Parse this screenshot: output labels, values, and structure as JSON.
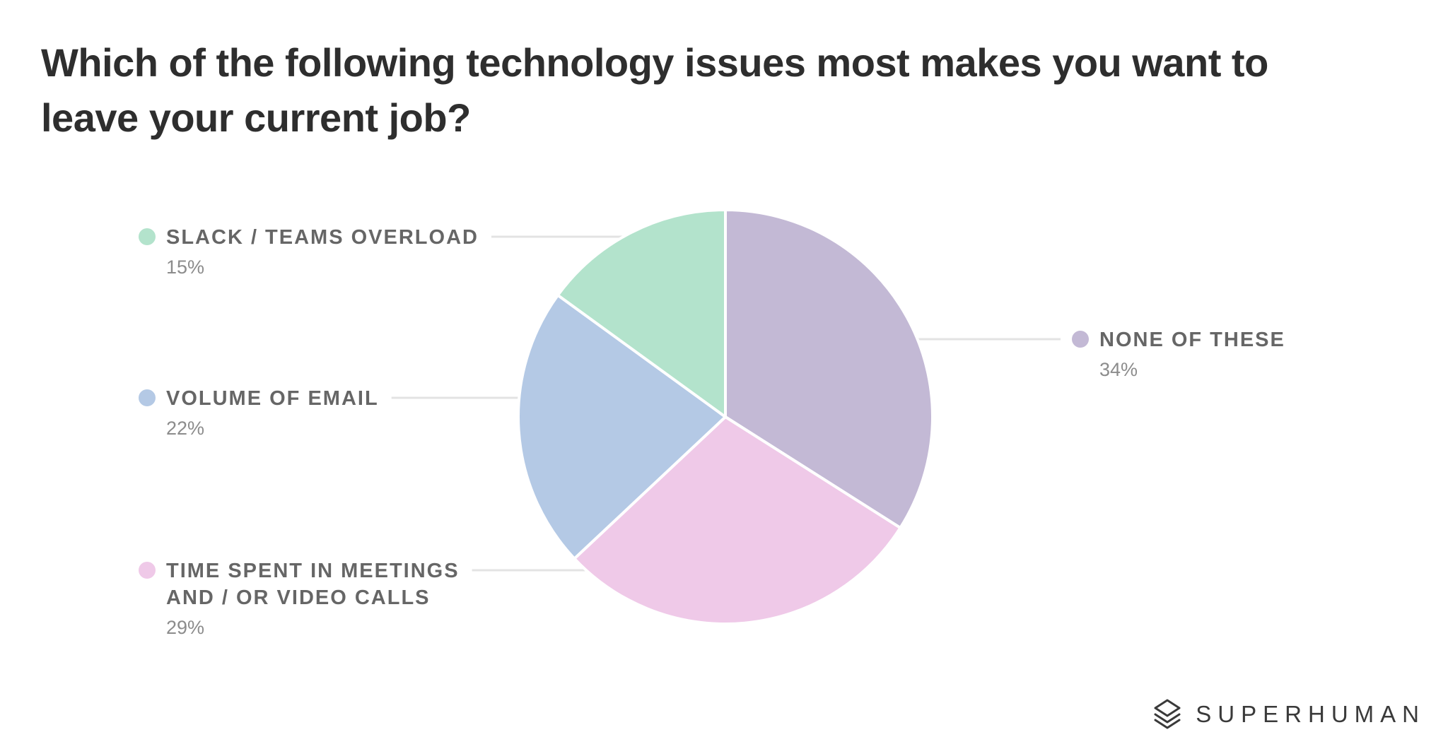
{
  "title": "Which of the following technology issues most makes you want to leave your current job?",
  "brand": {
    "name": "SUPERHUMAN",
    "logo_icon": "superhuman-logo-icon"
  },
  "chart_data": {
    "type": "pie",
    "title": "Which of the following technology issues most makes you want to leave your current job?",
    "start_angle_deg": 0,
    "direction": "clockwise",
    "slices": [
      {
        "label": "NONE OF THESE",
        "lines": [
          "NONE OF THESE"
        ],
        "value": 34,
        "value_label": "34%",
        "color": "#c3b9d5",
        "side": "right"
      },
      {
        "label": "TIME SPENT IN MEETINGS AND / OR VIDEO CALLS",
        "lines": [
          "TIME SPENT IN MEETINGS",
          "AND / OR VIDEO CALLS"
        ],
        "value": 29,
        "value_label": "29%",
        "color": "#efc9e8",
        "side": "left"
      },
      {
        "label": "VOLUME OF EMAIL",
        "lines": [
          "VOLUME OF EMAIL"
        ],
        "value": 22,
        "value_label": "22%",
        "color": "#b4c9e5",
        "side": "left"
      },
      {
        "label": "SLACK / TEAMS OVERLOAD",
        "lines": [
          "SLACK / TEAMS OVERLOAD"
        ],
        "value": 15,
        "value_label": "15%",
        "color": "#b3e3cc",
        "side": "left"
      }
    ]
  }
}
